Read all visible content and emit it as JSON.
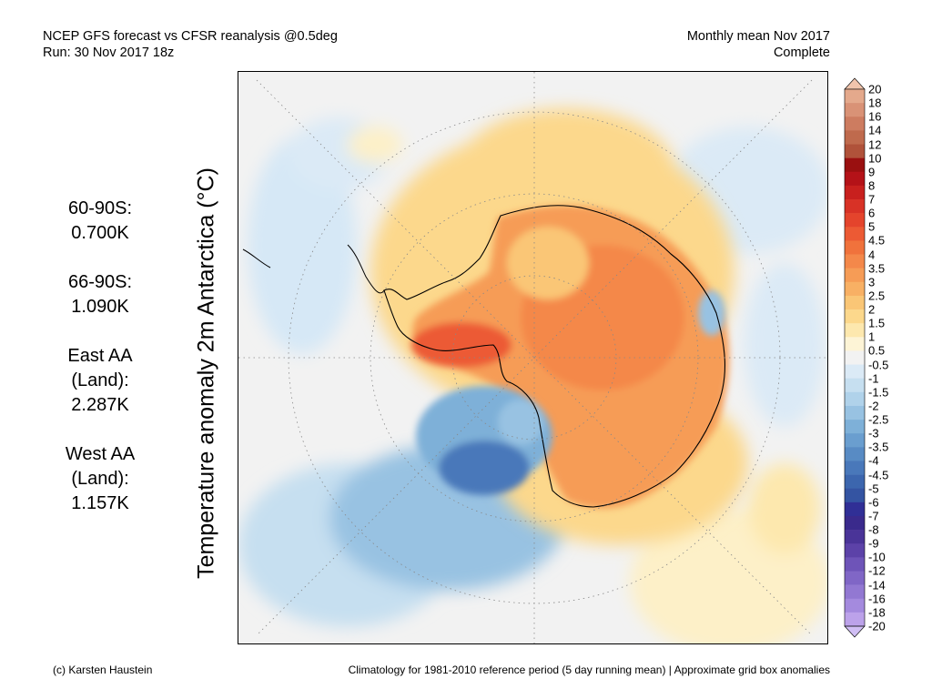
{
  "header": {
    "line1": "NCEP GFS forecast vs CFSR reanalysis @0.5deg",
    "line2": "Run: 30 Nov 2017 18z",
    "right_line1": "Monthly mean Nov 2017",
    "right_line2": "Complete"
  },
  "ylabel": "Temperature anomaly 2m Antarctica (°C)",
  "stats": [
    {
      "label": "60-90S:",
      "value": "0.700K"
    },
    {
      "label": "66-90S:",
      "value": "1.090K"
    },
    {
      "label": "East AA",
      "label2": "(Land):",
      "value": "2.287K"
    },
    {
      "label": "West AA",
      "label2": "(Land):",
      "value": "1.157K"
    }
  ],
  "colorbar": {
    "labels": [
      "20",
      "18",
      "16",
      "14",
      "12",
      "10",
      "9",
      "8",
      "7",
      "6",
      "5",
      "4.5",
      "4",
      "3.5",
      "3",
      "2.5",
      "2",
      "1.5",
      "1",
      "0.5",
      "-0.5",
      "-1",
      "-1.5",
      "-2",
      "-2.5",
      "-3",
      "-3.5",
      "-4",
      "-4.5",
      "-5",
      "-6",
      "-7",
      "-8",
      "-9",
      "-10",
      "-12",
      "-14",
      "-16",
      "-18",
      "-20"
    ],
    "colors": [
      "#f0c4ac",
      "#e4a98c",
      "#d99276",
      "#cd7c60",
      "#bf6a4d",
      "#b0523a",
      "#9a1010",
      "#b41218",
      "#c8201e",
      "#d83226",
      "#e4442c",
      "#ec5a34",
      "#f0723c",
      "#f4884a",
      "#f69c56",
      "#f8b064",
      "#fac676",
      "#fcd88c",
      "#fde8ae",
      "#fdf4d6",
      "#f2f2f2",
      "#dbeaf6",
      "#c6dff0",
      "#b0d2ea",
      "#98c2e2",
      "#7eb0d8",
      "#6a9ecf",
      "#588bc4",
      "#4978ba",
      "#3c66ae",
      "#3454a2",
      "#302f96",
      "#3a2a8c",
      "#4a3498",
      "#5c42a8",
      "#6e54b8",
      "#8066c6",
      "#9278d2",
      "#a48ade",
      "#bca2ea",
      "#d0bef4"
    ]
  },
  "footer": {
    "left": "(c) Karsten Haustein",
    "right": "Climatology for 1981-2010 reference period (5 day running mean) | Approximate grid box anomalies"
  }
}
